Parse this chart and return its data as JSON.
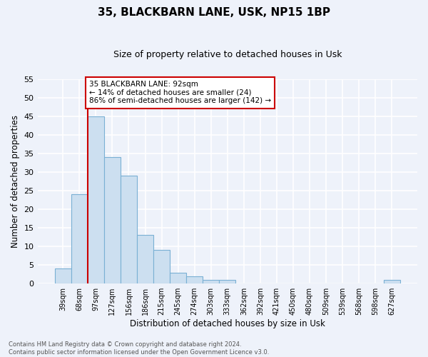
{
  "title": "35, BLACKBARN LANE, USK, NP15 1BP",
  "subtitle": "Size of property relative to detached houses in Usk",
  "xlabel": "Distribution of detached houses by size in Usk",
  "ylabel": "Number of detached properties",
  "bar_labels": [
    "39sqm",
    "68sqm",
    "97sqm",
    "127sqm",
    "156sqm",
    "186sqm",
    "215sqm",
    "245sqm",
    "274sqm",
    "303sqm",
    "333sqm",
    "362sqm",
    "392sqm",
    "421sqm",
    "450sqm",
    "480sqm",
    "509sqm",
    "539sqm",
    "568sqm",
    "598sqm",
    "627sqm"
  ],
  "bar_values": [
    4,
    24,
    45,
    34,
    29,
    13,
    9,
    3,
    2,
    1,
    1,
    0,
    0,
    0,
    0,
    0,
    0,
    0,
    0,
    0,
    1
  ],
  "bar_color": "#ccdff0",
  "bar_edge_color": "#7ab0d4",
  "property_line_bar_index": 2,
  "property_line_color": "#cc0000",
  "ylim": [
    0,
    55
  ],
  "yticks": [
    0,
    5,
    10,
    15,
    20,
    25,
    30,
    35,
    40,
    45,
    50,
    55
  ],
  "annotation_text": "35 BLACKBARN LANE: 92sqm\n← 14% of detached houses are smaller (24)\n86% of semi-detached houses are larger (142) →",
  "annotation_box_color": "white",
  "annotation_box_edge_color": "#cc0000",
  "footnote1": "Contains HM Land Registry data © Crown copyright and database right 2024.",
  "footnote2": "Contains public sector information licensed under the Open Government Licence v3.0.",
  "background_color": "#eef2fa",
  "grid_color": "#d0d8ec"
}
